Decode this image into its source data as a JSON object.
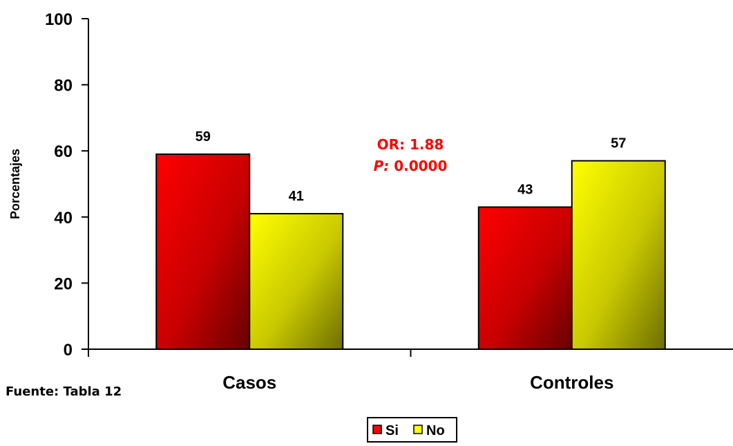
{
  "chart_data": {
    "type": "bar",
    "categories": [
      "Casos",
      "Controles"
    ],
    "series": [
      {
        "name": "Si",
        "values": [
          59,
          43
        ],
        "color": "#ff0000"
      },
      {
        "name": "No",
        "values": [
          41,
          57
        ],
        "color": "#ffff00"
      }
    ],
    "ylabel": "Porcentajes",
    "ylim": [
      0,
      100
    ],
    "yticks": [
      0,
      20,
      40,
      60,
      80,
      100
    ],
    "legend_position": "bottom-center",
    "grid": false
  },
  "annotation": {
    "or_text": "OR: 1.88",
    "p_label": "P:",
    "p_value": " 0.0000",
    "color": "#ff0000"
  },
  "source_text": "Fuente: Tabla 12"
}
